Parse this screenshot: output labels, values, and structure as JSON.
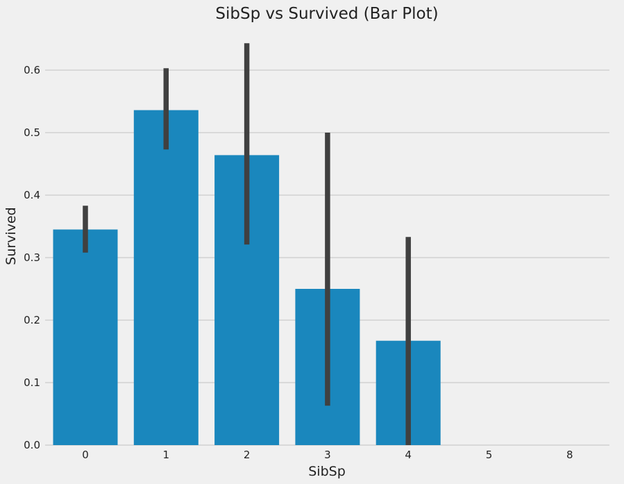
{
  "chart_data": {
    "type": "bar",
    "title": "SibSp vs Survived (Bar Plot)",
    "xlabel": "SibSp",
    "ylabel": "Survived",
    "categories": [
      "0",
      "1",
      "2",
      "3",
      "4",
      "5",
      "8"
    ],
    "values": [
      0.345,
      0.536,
      0.464,
      0.25,
      0.167,
      0,
      0
    ],
    "error_bars": [
      [
        0.308,
        0.383
      ],
      [
        0.473,
        0.603
      ],
      [
        0.321,
        0.643
      ],
      [
        0.063,
        0.5
      ],
      [
        0.0,
        0.333
      ],
      null,
      null
    ],
    "yticks": [
      "0.0",
      "0.1",
      "0.2",
      "0.3",
      "0.4",
      "0.5",
      "0.6"
    ],
    "ylim": [
      0,
      0.66
    ],
    "grid": "horizontal",
    "colors": {
      "bar": "#1a87bd",
      "error_bar": "#404040",
      "grid": "#cbcbcb",
      "background": "#f0f0f0"
    }
  }
}
